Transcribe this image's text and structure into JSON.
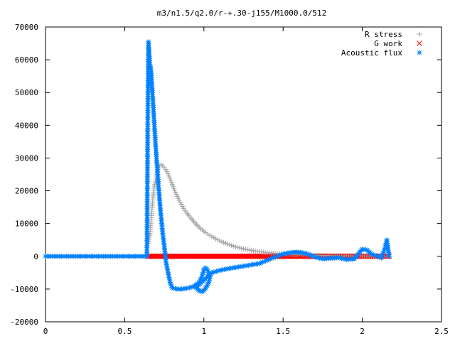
{
  "chart_data": {
    "type": "scatter",
    "title": "m3/n1.5/q2.0/r-+.30-j155/M1000.0/512",
    "xlabel": "",
    "ylabel": "",
    "xlim": [
      0,
      2.5
    ],
    "ylim": [
      -20000,
      70000
    ],
    "x_ticks": [
      "0",
      "0.5",
      "1",
      "1.5",
      "2",
      "2.5"
    ],
    "y_ticks": [
      "-20000",
      "-10000",
      "0",
      "10000",
      "20000",
      "30000",
      "40000",
      "50000",
      "60000",
      "70000"
    ],
    "grid": false,
    "legend_position": "top-right",
    "series": [
      {
        "name": "R stress",
        "marker": "plus",
        "color": "#a0a0a0",
        "points": [
          [
            0.65,
            4000
          ],
          [
            0.66,
            7000
          ],
          [
            0.665,
            10000
          ],
          [
            0.67,
            13000
          ],
          [
            0.675,
            16000
          ],
          [
            0.68,
            19000
          ],
          [
            0.69,
            22000
          ],
          [
            0.7,
            24500
          ],
          [
            0.71,
            26500
          ],
          [
            0.72,
            27500
          ],
          [
            0.73,
            28000
          ],
          [
            0.74,
            27600
          ],
          [
            0.76,
            26500
          ],
          [
            0.78,
            24500
          ],
          [
            0.8,
            22000
          ],
          [
            0.82,
            19500
          ],
          [
            0.85,
            16500
          ],
          [
            0.88,
            14000
          ],
          [
            0.92,
            11500
          ],
          [
            0.96,
            9300
          ],
          [
            1.0,
            7600
          ],
          [
            1.05,
            6000
          ],
          [
            1.1,
            4700
          ],
          [
            1.15,
            3700
          ],
          [
            1.2,
            2900
          ],
          [
            1.25,
            2300
          ],
          [
            1.3,
            1800
          ],
          [
            1.35,
            1400
          ],
          [
            1.4,
            1100
          ],
          [
            1.45,
            900
          ],
          [
            1.5,
            700
          ],
          [
            1.55,
            550
          ],
          [
            1.6,
            450
          ],
          [
            1.7,
            300
          ],
          [
            1.8,
            200
          ],
          [
            1.9,
            150
          ],
          [
            2.0,
            100
          ],
          [
            2.1,
            60
          ],
          [
            2.17,
            40
          ]
        ]
      },
      {
        "name": "G work",
        "marker": "cross",
        "color": "#ff0000",
        "points": [
          [
            0.65,
            0
          ],
          [
            0.8,
            0
          ],
          [
            1.0,
            0
          ],
          [
            1.2,
            0
          ],
          [
            1.4,
            0
          ],
          [
            1.6,
            0
          ],
          [
            1.8,
            0
          ],
          [
            2.0,
            0
          ],
          [
            2.17,
            0
          ]
        ]
      },
      {
        "name": "Acoustic flux",
        "marker": "asterisk",
        "color": "#0080ff",
        "points": [
          [
            0.0,
            0
          ],
          [
            0.2,
            0
          ],
          [
            0.4,
            0
          ],
          [
            0.6,
            0
          ],
          [
            0.64,
            0
          ],
          [
            0.645,
            38000
          ],
          [
            0.65,
            65500
          ],
          [
            0.655,
            61500
          ],
          [
            0.66,
            57500
          ],
          [
            0.665,
            57500
          ],
          [
            0.67,
            54000
          ],
          [
            0.675,
            50000
          ],
          [
            0.68,
            46000
          ],
          [
            0.685,
            42000
          ],
          [
            0.69,
            38000
          ],
          [
            0.695,
            34000
          ],
          [
            0.7,
            30500
          ],
          [
            0.705,
            27000
          ],
          [
            0.71,
            24000
          ],
          [
            0.715,
            20500
          ],
          [
            0.72,
            17500
          ],
          [
            0.725,
            14500
          ],
          [
            0.73,
            12000
          ],
          [
            0.735,
            9500
          ],
          [
            0.74,
            7000
          ],
          [
            0.745,
            5000
          ],
          [
            0.75,
            3000
          ],
          [
            0.755,
            1000
          ],
          [
            0.76,
            -1500
          ],
          [
            0.77,
            -4000
          ],
          [
            0.78,
            -6500
          ],
          [
            0.79,
            -8500
          ],
          [
            0.8,
            -9600
          ],
          [
            0.83,
            -10000
          ],
          [
            0.86,
            -10000
          ],
          [
            0.9,
            -9700
          ],
          [
            0.93,
            -9300
          ],
          [
            0.95,
            -8700
          ],
          [
            0.97,
            -8000
          ],
          [
            0.985,
            -6500
          ],
          [
            0.995,
            -5000
          ],
          [
            1.0,
            -4000
          ],
          [
            1.01,
            -3500
          ],
          [
            1.02,
            -4000
          ],
          [
            1.03,
            -5000
          ],
          [
            1.04,
            -6200
          ],
          [
            1.03,
            -8000
          ],
          [
            1.01,
            -9800
          ],
          [
            0.99,
            -10800
          ],
          [
            0.97,
            -10500
          ],
          [
            0.95,
            -9500
          ],
          [
            1.05,
            -5000
          ],
          [
            1.1,
            -4300
          ],
          [
            1.15,
            -3800
          ],
          [
            1.2,
            -3400
          ],
          [
            1.25,
            -3000
          ],
          [
            1.3,
            -2600
          ],
          [
            1.35,
            -2200
          ],
          [
            1.4,
            -1200
          ],
          [
            1.45,
            -200
          ],
          [
            1.5,
            700
          ],
          [
            1.55,
            1200
          ],
          [
            1.6,
            1300
          ],
          [
            1.65,
            800
          ],
          [
            1.7,
            -200
          ],
          [
            1.75,
            -800
          ],
          [
            1.8,
            -600
          ],
          [
            1.85,
            -400
          ],
          [
            1.9,
            -1000
          ],
          [
            1.95,
            -800
          ],
          [
            1.98,
            1000
          ],
          [
            2.0,
            2200
          ],
          [
            2.03,
            1900
          ],
          [
            2.06,
            600
          ],
          [
            2.09,
            200
          ],
          [
            2.12,
            -500
          ],
          [
            2.14,
            2000
          ],
          [
            2.155,
            5000
          ],
          [
            2.17,
            0
          ]
        ]
      }
    ]
  }
}
